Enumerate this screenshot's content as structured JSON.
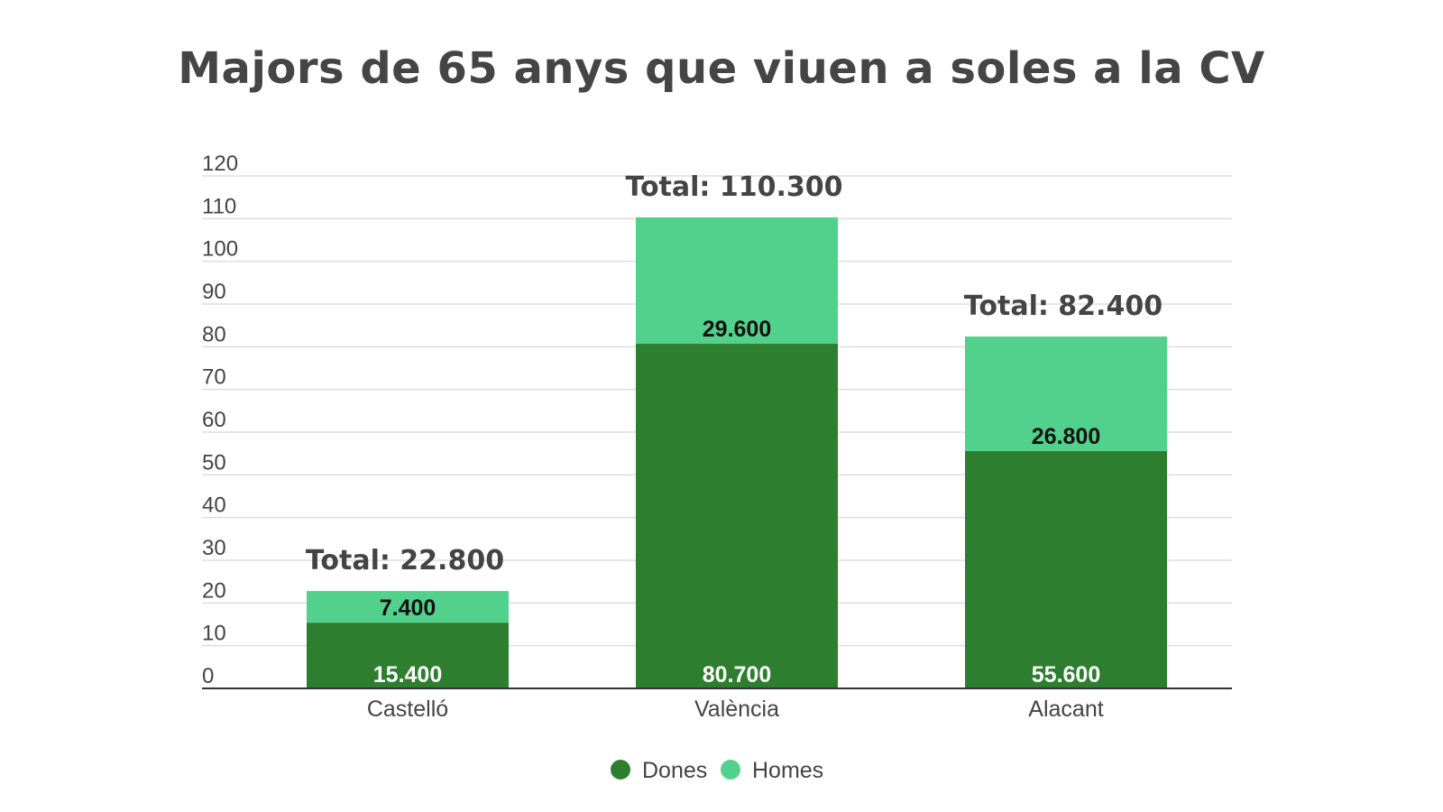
{
  "chart_data": {
    "type": "bar",
    "stacked": true,
    "title": "Majors de 65 anys que viuen a soles a la CV",
    "categories": [
      "Castelló",
      "València",
      "Alacant"
    ],
    "series": [
      {
        "name": "Dones",
        "color": "#2d7f2f",
        "label_color": "#ffffff",
        "values": [
          15.4,
          80.7,
          55.6
        ],
        "labels": [
          "15.400",
          "80.700",
          "55.600"
        ]
      },
      {
        "name": "Homes",
        "color": "#52d18c",
        "label_color": "#111111",
        "values": [
          7.4,
          29.6,
          26.8
        ],
        "labels": [
          "7.400",
          "29.600",
          "26.800"
        ]
      }
    ],
    "totals": [
      "Total: 22.800",
      "Total: 110.300",
      "Total: 82.400"
    ],
    "yticks": [
      0,
      10,
      20,
      30,
      40,
      50,
      60,
      70,
      80,
      90,
      100,
      110,
      120
    ],
    "ylim": [
      0,
      120
    ],
    "xlabel": "",
    "ylabel": "",
    "grid": true,
    "legend_position": "bottom-center"
  }
}
